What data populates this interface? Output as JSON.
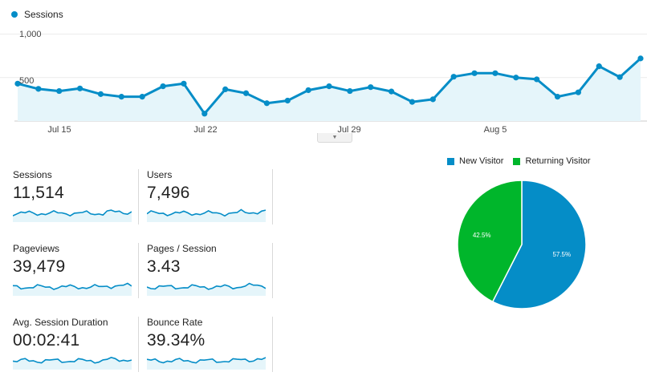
{
  "main_chart": {
    "legend_label": "Sessions",
    "y_tick_1000": "1,000",
    "y_tick_500": "500",
    "x_labels": [
      "Jul 15",
      "Jul 22",
      "Jul 29",
      "Aug 5"
    ],
    "line_color": "#058dc7",
    "fill_color": "#e5f5fa"
  },
  "chart_data": {
    "type": "area",
    "series": [
      {
        "name": "Sessions",
        "values": [
          430,
          370,
          345,
          375,
          310,
          280,
          280,
          400,
          430,
          85,
          365,
          320,
          205,
          235,
          355,
          400,
          345,
          390,
          340,
          220,
          250,
          510,
          550,
          550,
          500,
          480,
          280,
          330,
          630,
          505,
          720
        ]
      }
    ],
    "ylim": [
      0,
      1000
    ]
  },
  "metrics": [
    {
      "label": "Sessions",
      "value": "11,514"
    },
    {
      "label": "Users",
      "value": "7,496"
    },
    {
      "label": "Pageviews",
      "value": "39,479"
    },
    {
      "label": "Pages / Session",
      "value": "3.43"
    },
    {
      "label": "Avg. Session Duration",
      "value": "00:02:41"
    },
    {
      "label": "Bounce Rate",
      "value": "39.34%"
    }
  ],
  "pie": {
    "legend": [
      {
        "label": "New Visitor",
        "color": "#058dc7"
      },
      {
        "label": "Returning Visitor",
        "color": "#00b62b"
      }
    ],
    "slices": [
      {
        "label": "57.5%",
        "value": 57.5,
        "color": "#058dc7"
      },
      {
        "label": "42.5%",
        "value": 42.5,
        "color": "#00b62b"
      }
    ]
  }
}
